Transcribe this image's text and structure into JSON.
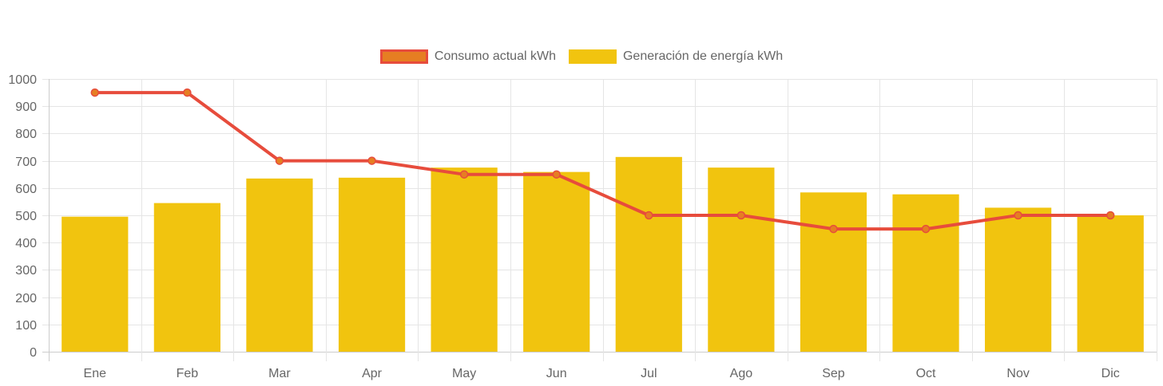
{
  "chart_data": {
    "type": "bar",
    "title": "",
    "xlabel": "",
    "ylabel": "",
    "categories": [
      "Ene",
      "Feb",
      "Mar",
      "Apr",
      "May",
      "Jun",
      "Jul",
      "Ago",
      "Sep",
      "Oct",
      "Nov",
      "Dic"
    ],
    "ylim": [
      0,
      1000
    ],
    "yticks": [
      0,
      100,
      200,
      300,
      400,
      500,
      600,
      700,
      800,
      900,
      1000
    ],
    "grid": true,
    "legend_position": "top-center",
    "series": [
      {
        "name": "Consumo actual kWh",
        "type": "line",
        "color": "#e74c3c",
        "point_color": "#e67e22",
        "values": [
          950,
          950,
          700,
          700,
          650,
          650,
          500,
          500,
          450,
          450,
          500,
          500
        ]
      },
      {
        "name": "Generación de energía kWh",
        "type": "bar",
        "color": "#f1c40f",
        "values": [
          495,
          545,
          635,
          638,
          675,
          659,
          714,
          675,
          584,
          577,
          528,
          500
        ]
      }
    ]
  }
}
